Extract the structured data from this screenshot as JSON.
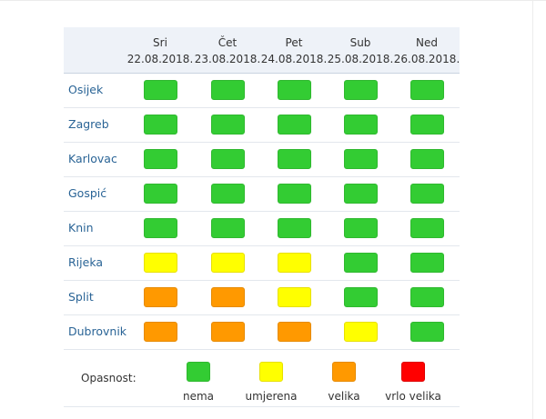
{
  "days": [
    {
      "name": "Sri",
      "date": "22.08.2018."
    },
    {
      "name": "Čet",
      "date": "23.08.2018."
    },
    {
      "name": "Pet",
      "date": "24.08.2018."
    },
    {
      "name": "Sub",
      "date": "25.08.2018."
    },
    {
      "name": "Ned",
      "date": "26.08.2018."
    }
  ],
  "levels": {
    "nema": {
      "label": "nema",
      "color": "#33cc33",
      "border": "#2fb82f"
    },
    "umjerena": {
      "label": "umjerena",
      "color": "#ffff00",
      "border": "#e8e000"
    },
    "velika": {
      "label": "velika",
      "color": "#ff9900",
      "border": "#e68a00"
    },
    "vrlo_velika": {
      "label": "vrlo velika",
      "color": "#ff0000",
      "border": "#dd0000"
    }
  },
  "rows": [
    {
      "city": "Osijek",
      "levels": [
        "nema",
        "nema",
        "nema",
        "nema",
        "nema"
      ]
    },
    {
      "city": "Zagreb",
      "levels": [
        "nema",
        "nema",
        "nema",
        "nema",
        "nema"
      ]
    },
    {
      "city": "Karlovac",
      "levels": [
        "nema",
        "nema",
        "nema",
        "nema",
        "nema"
      ]
    },
    {
      "city": "Gospić",
      "levels": [
        "nema",
        "nema",
        "nema",
        "nema",
        "nema"
      ]
    },
    {
      "city": "Knin",
      "levels": [
        "nema",
        "nema",
        "nema",
        "nema",
        "nema"
      ]
    },
    {
      "city": "Rijeka",
      "levels": [
        "umjerena",
        "umjerena",
        "umjerena",
        "nema",
        "nema"
      ]
    },
    {
      "city": "Split",
      "levels": [
        "velika",
        "velika",
        "umjerena",
        "nema",
        "nema"
      ]
    },
    {
      "city": "Dubrovnik",
      "levels": [
        "velika",
        "velika",
        "velika",
        "umjerena",
        "nema"
      ]
    }
  ],
  "legend": {
    "label": "Opasnost:",
    "items": [
      "nema",
      "umjerena",
      "velika",
      "vrlo_velika"
    ]
  }
}
